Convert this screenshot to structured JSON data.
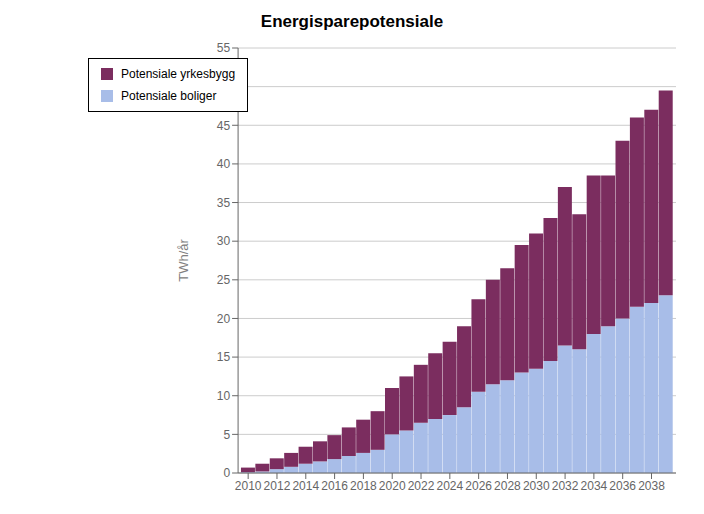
{
  "chart_data": {
    "type": "bar",
    "title": "Energisparepotensiale",
    "ylabel": "TWh/år",
    "stacked": true,
    "x": [
      2010,
      2011,
      2012,
      2013,
      2014,
      2015,
      2016,
      2017,
      2018,
      2019,
      2020,
      2021,
      2022,
      2023,
      2024,
      2025,
      2026,
      2027,
      2028,
      2029,
      2030,
      2031,
      2032,
      2033,
      2034,
      2035,
      2036,
      2037,
      2038,
      2039
    ],
    "series": [
      {
        "name": "Potensiale boliger",
        "color": "#A8BDE8",
        "values": [
          0.1,
          0.2,
          0.5,
          0.8,
          1.2,
          1.5,
          1.8,
          2.2,
          2.6,
          3.0,
          5.0,
          5.5,
          6.5,
          7.0,
          7.5,
          8.5,
          10.5,
          11.5,
          12.0,
          13.0,
          13.5,
          14.5,
          16.5,
          16.0,
          18.0,
          19.0,
          20.0,
          21.5,
          22.0,
          23.0
        ]
      },
      {
        "name": "Potensiale yrkesbygg",
        "color": "#7B2D5F",
        "values": [
          0.6,
          1.0,
          1.4,
          1.8,
          2.2,
          2.6,
          3.1,
          3.7,
          4.3,
          5.0,
          6.0,
          7.0,
          7.5,
          8.5,
          9.5,
          10.5,
          12.0,
          13.5,
          14.5,
          16.5,
          17.5,
          18.5,
          20.5,
          17.5,
          20.5,
          19.5,
          23.0,
          24.5,
          25.0,
          26.5
        ]
      }
    ],
    "xlim": [
      2009.3,
      2039.7
    ],
    "xticks": [
      2010,
      2012,
      2014,
      2016,
      2018,
      2020,
      2022,
      2024,
      2026,
      2028,
      2030,
      2032,
      2034,
      2036,
      2038
    ],
    "ylim": [
      0,
      55
    ],
    "yticks": [
      0,
      5,
      10,
      15,
      20,
      25,
      30,
      35,
      40,
      45,
      50,
      55
    ],
    "grid": true,
    "legend": "upper left"
  }
}
